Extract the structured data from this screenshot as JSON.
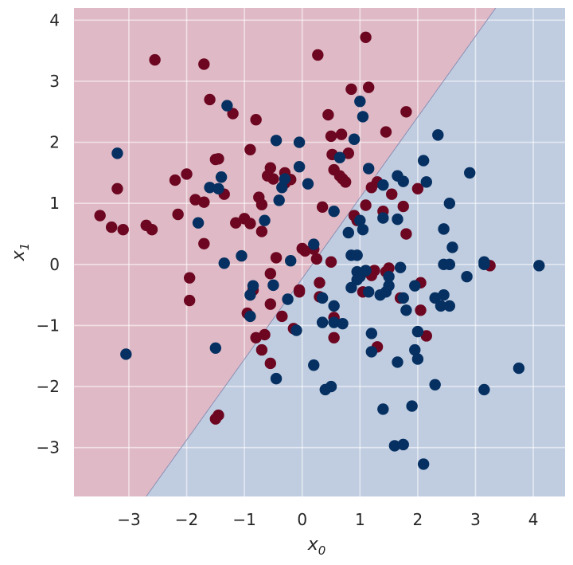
{
  "chart_data": {
    "type": "scatter",
    "title": "",
    "xlabel": "x",
    "xlabel_sub": "0",
    "ylabel": "x",
    "ylabel_sub": "1",
    "xlim": [
      -3.95,
      4.55
    ],
    "ylim": [
      -3.8,
      4.2
    ],
    "x_ticks": [
      -3,
      -2,
      -1,
      0,
      1,
      2,
      3,
      4
    ],
    "x_tick_labels": [
      "−3",
      "−2",
      "−1",
      "0",
      "1",
      "2",
      "3",
      "4"
    ],
    "y_ticks": [
      -3,
      -2,
      -1,
      0,
      1,
      2,
      3,
      4
    ],
    "y_tick_labels": [
      "−3",
      "−2",
      "−1",
      "0",
      "1",
      "2",
      "3",
      "4"
    ],
    "grid": true,
    "decision_boundary": {
      "points": [
        [
          -2.7,
          -3.8
        ],
        [
          3.35,
          4.2
        ]
      ],
      "region_upper_left_color": "#dfbac6",
      "region_lower_right_color": "#c0cde1",
      "line_color": "#8c8fb4"
    },
    "series": [
      {
        "color": "#6d0621",
        "points": [
          [
            -2.55,
            3.35
          ],
          [
            -1.7,
            3.28
          ],
          [
            0.27,
            3.43
          ],
          [
            1.1,
            3.72
          ],
          [
            1.15,
            2.9
          ],
          [
            0.85,
            2.87
          ],
          [
            -1.6,
            2.7
          ],
          [
            -0.8,
            2.37
          ],
          [
            -1.2,
            2.47
          ],
          [
            0.45,
            2.45
          ],
          [
            1.8,
            2.5
          ],
          [
            1.45,
            2.17
          ],
          [
            0.5,
            2.1
          ],
          [
            0.68,
            2.13
          ],
          [
            0.8,
            1.82
          ],
          [
            0.52,
            1.8
          ],
          [
            -0.9,
            1.88
          ],
          [
            -1.5,
            1.72
          ],
          [
            -1.45,
            1.73
          ],
          [
            -0.55,
            1.58
          ],
          [
            -0.3,
            1.5
          ],
          [
            -0.6,
            1.45
          ],
          [
            -0.5,
            1.4
          ],
          [
            -0.2,
            1.39
          ],
          [
            -0.3,
            1.33
          ],
          [
            0.55,
            1.55
          ],
          [
            0.65,
            1.45
          ],
          [
            0.7,
            1.4
          ],
          [
            0.75,
            1.35
          ],
          [
            -2.0,
            1.48
          ],
          [
            -2.2,
            1.38
          ],
          [
            -3.2,
            1.24
          ],
          [
            -1.85,
            1.06
          ],
          [
            -1.7,
            1.02
          ],
          [
            -1.35,
            1.15
          ],
          [
            -0.75,
            1.1
          ],
          [
            -0.7,
            0.98
          ],
          [
            1.1,
            0.97
          ],
          [
            1.3,
            1.35
          ],
          [
            1.2,
            1.26
          ],
          [
            1.55,
            1.15
          ],
          [
            1.75,
            0.95
          ],
          [
            2.0,
            1.24
          ],
          [
            -2.15,
            0.82
          ],
          [
            -3.5,
            0.8
          ],
          [
            -3.3,
            0.61
          ],
          [
            -3.1,
            0.57
          ],
          [
            -2.7,
            0.64
          ],
          [
            -2.6,
            0.57
          ],
          [
            -1.15,
            0.68
          ],
          [
            -1.0,
            0.75
          ],
          [
            -0.9,
            0.67
          ],
          [
            -0.7,
            0.54
          ],
          [
            -1.7,
            0.34
          ],
          [
            0.35,
            0.94
          ],
          [
            0.9,
            0.8
          ],
          [
            0.95,
            0.72
          ],
          [
            1.4,
            0.87
          ],
          [
            1.8,
            0.5
          ],
          [
            -0.45,
            0.11
          ],
          [
            0.0,
            0.26
          ],
          [
            0.05,
            0.22
          ],
          [
            0.2,
            0.25
          ],
          [
            0.25,
            0.09
          ],
          [
            0.5,
            0.04
          ],
          [
            -0.55,
            -0.15
          ],
          [
            -1.95,
            -0.22
          ],
          [
            -1.95,
            -0.59
          ],
          [
            -0.85,
            -0.42
          ],
          [
            -0.05,
            -0.42
          ],
          [
            -0.05,
            -0.45
          ],
          [
            0.3,
            -0.3
          ],
          [
            1.05,
            -0.45
          ],
          [
            1.15,
            -0.13
          ],
          [
            1.2,
            -0.18
          ],
          [
            1.25,
            -0.1
          ],
          [
            1.5,
            -0.06
          ],
          [
            1.45,
            -0.12
          ],
          [
            2.05,
            -0.3
          ],
          [
            1.7,
            -0.55
          ],
          [
            3.25,
            -0.02
          ],
          [
            -0.55,
            -0.65
          ],
          [
            -0.95,
            -0.8
          ],
          [
            -0.8,
            -1.2
          ],
          [
            -0.65,
            -1.15
          ],
          [
            -0.7,
            -1.4
          ],
          [
            -0.35,
            -0.85
          ],
          [
            -0.15,
            -1.05
          ],
          [
            0.3,
            -0.53
          ],
          [
            0.55,
            -0.87
          ],
          [
            0.55,
            -1.2
          ],
          [
            1.3,
            -1.35
          ],
          [
            2.05,
            -0.75
          ],
          [
            2.15,
            -1.17
          ],
          [
            -0.55,
            -1.62
          ],
          [
            -1.45,
            -2.47
          ],
          [
            -1.5,
            -2.53
          ]
        ]
      },
      {
        "color": "#053061",
        "points": [
          [
            -3.2,
            1.82
          ],
          [
            -1.3,
            2.6
          ],
          [
            1.0,
            2.67
          ],
          [
            1.05,
            2.42
          ],
          [
            2.35,
            2.12
          ],
          [
            -0.45,
            2.03
          ],
          [
            -0.05,
            2.0
          ],
          [
            0.9,
            2.05
          ],
          [
            0.65,
            1.75
          ],
          [
            2.1,
            1.7
          ],
          [
            2.9,
            1.5
          ],
          [
            1.15,
            1.57
          ],
          [
            -0.05,
            1.6
          ],
          [
            -0.35,
            1.26
          ],
          [
            -0.3,
            1.4
          ],
          [
            0.1,
            1.32
          ],
          [
            1.65,
            1.45
          ],
          [
            1.75,
            1.36
          ],
          [
            2.15,
            1.35
          ],
          [
            1.4,
            1.3
          ],
          [
            -1.6,
            1.26
          ],
          [
            -1.4,
            1.43
          ],
          [
            -1.45,
            1.24
          ],
          [
            -0.4,
            1.05
          ],
          [
            -1.8,
            0.68
          ],
          [
            -0.65,
            0.72
          ],
          [
            0.55,
            0.87
          ],
          [
            0.8,
            0.52
          ],
          [
            1.0,
            0.72
          ],
          [
            1.05,
            0.57
          ],
          [
            1.4,
            0.76
          ],
          [
            1.65,
            0.74
          ],
          [
            2.55,
            1.0
          ],
          [
            2.45,
            0.58
          ],
          [
            2.6,
            0.28
          ],
          [
            -1.35,
            0.02
          ],
          [
            -1.05,
            0.14
          ],
          [
            -0.2,
            0.06
          ],
          [
            0.2,
            0.33
          ],
          [
            0.85,
            0.15
          ],
          [
            0.95,
            0.15
          ],
          [
            0.95,
            -0.12
          ],
          [
            1.0,
            -0.2
          ],
          [
            0.95,
            -0.25
          ],
          [
            1.1,
            -0.1
          ],
          [
            1.15,
            -0.45
          ],
          [
            1.35,
            -0.5
          ],
          [
            1.45,
            -0.45
          ],
          [
            1.5,
            -0.35
          ],
          [
            1.5,
            -0.2
          ],
          [
            1.7,
            -0.05
          ],
          [
            1.95,
            -0.35
          ],
          [
            2.45,
            0.0
          ],
          [
            2.55,
            0.0
          ],
          [
            2.85,
            -0.2
          ],
          [
            3.15,
            0.0
          ],
          [
            3.15,
            0.04
          ],
          [
            4.1,
            -0.02
          ],
          [
            -0.85,
            -0.35
          ],
          [
            -0.9,
            -0.5
          ],
          [
            -0.5,
            -0.34
          ],
          [
            -0.25,
            -0.57
          ],
          [
            0.35,
            -0.55
          ],
          [
            0.85,
            -0.38
          ],
          [
            0.55,
            -0.68
          ],
          [
            1.75,
            -0.55
          ],
          [
            1.8,
            -0.75
          ],
          [
            2.3,
            -0.55
          ],
          [
            2.4,
            -0.68
          ],
          [
            2.45,
            -0.5
          ],
          [
            2.55,
            -0.68
          ],
          [
            -0.9,
            -0.85
          ],
          [
            -0.1,
            -1.08
          ],
          [
            0.35,
            -0.95
          ],
          [
            0.55,
            -0.95
          ],
          [
            0.7,
            -0.97
          ],
          [
            1.2,
            -1.13
          ],
          [
            2.0,
            -1.1
          ],
          [
            -3.05,
            -1.47
          ],
          [
            -1.5,
            -1.37
          ],
          [
            1.2,
            -1.43
          ],
          [
            1.95,
            -1.4
          ],
          [
            2.0,
            -1.55
          ],
          [
            3.75,
            -1.7
          ],
          [
            -0.45,
            -1.87
          ],
          [
            0.2,
            -1.65
          ],
          [
            0.4,
            -2.05
          ],
          [
            0.5,
            -2.0
          ],
          [
            1.65,
            -1.6
          ],
          [
            2.3,
            -1.97
          ],
          [
            3.15,
            -2.05
          ],
          [
            1.4,
            -2.37
          ],
          [
            1.9,
            -2.32
          ],
          [
            1.6,
            -2.97
          ],
          [
            1.75,
            -2.95
          ],
          [
            2.1,
            -3.27
          ]
        ]
      }
    ]
  }
}
